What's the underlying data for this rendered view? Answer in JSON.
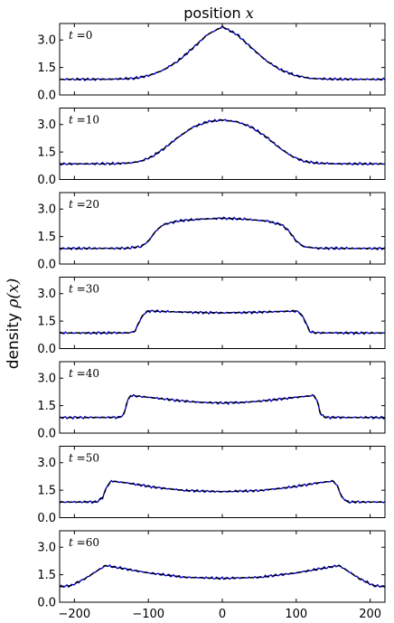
{
  "chart_data": {
    "type": "line",
    "title": "",
    "xlabel": {
      "prefix": "position ",
      "symbol": "x"
    },
    "ylabel": {
      "prefix": "density ",
      "symbol": "ρ(x)"
    },
    "xlim": [
      -220,
      220
    ],
    "ylim": [
      0,
      3.9
    ],
    "xticks": [
      -200,
      -100,
      0,
      100,
      200
    ],
    "xtick_labels": [
      "−200",
      "−100",
      "0",
      "100",
      "200"
    ],
    "yticks": [
      0.0,
      1.5,
      3.0
    ],
    "ytick_labels": [
      "0.0",
      "1.5",
      "3.0"
    ],
    "grid": false,
    "series_styles": {
      "simulation": "#0000cc",
      "theory": "#000000 dashed"
    },
    "panels": [
      {
        "label_var": "t",
        "label_eq": " =0",
        "points": [
          [
            -220,
            0.85
          ],
          [
            -150,
            0.86
          ],
          [
            -120,
            0.9
          ],
          [
            -100,
            1.05
          ],
          [
            -80,
            1.35
          ],
          [
            -60,
            1.85
          ],
          [
            -40,
            2.55
          ],
          [
            -20,
            3.3
          ],
          [
            0,
            3.72
          ],
          [
            20,
            3.3
          ],
          [
            40,
            2.55
          ],
          [
            60,
            1.85
          ],
          [
            80,
            1.35
          ],
          [
            100,
            1.05
          ],
          [
            120,
            0.9
          ],
          [
            150,
            0.86
          ],
          [
            220,
            0.85
          ]
        ]
      },
      {
        "label_var": "t",
        "label_eq": " =10",
        "points": [
          [
            -220,
            0.85
          ],
          [
            -150,
            0.86
          ],
          [
            -125,
            0.9
          ],
          [
            -110,
            1.0
          ],
          [
            -95,
            1.25
          ],
          [
            -80,
            1.65
          ],
          [
            -60,
            2.3
          ],
          [
            -40,
            2.85
          ],
          [
            -20,
            3.15
          ],
          [
            0,
            3.25
          ],
          [
            20,
            3.15
          ],
          [
            40,
            2.85
          ],
          [
            60,
            2.3
          ],
          [
            80,
            1.65
          ],
          [
            95,
            1.25
          ],
          [
            110,
            1.0
          ],
          [
            125,
            0.9
          ],
          [
            150,
            0.86
          ],
          [
            220,
            0.85
          ]
        ]
      },
      {
        "label_var": "t",
        "label_eq": " =20",
        "points": [
          [
            -220,
            0.85
          ],
          [
            -130,
            0.86
          ],
          [
            -110,
            0.95
          ],
          [
            -100,
            1.25
          ],
          [
            -90,
            1.8
          ],
          [
            -80,
            2.15
          ],
          [
            -60,
            2.35
          ],
          [
            -30,
            2.45
          ],
          [
            0,
            2.5
          ],
          [
            30,
            2.45
          ],
          [
            60,
            2.35
          ],
          [
            80,
            2.15
          ],
          [
            90,
            1.8
          ],
          [
            100,
            1.25
          ],
          [
            110,
            0.95
          ],
          [
            130,
            0.86
          ],
          [
            220,
            0.85
          ]
        ]
      },
      {
        "label_var": "t",
        "label_eq": " =30",
        "points": [
          [
            -220,
            0.85
          ],
          [
            -125,
            0.86
          ],
          [
            -118,
            0.95
          ],
          [
            -112,
            1.5
          ],
          [
            -106,
            1.9
          ],
          [
            -100,
            2.05
          ],
          [
            -60,
            2.0
          ],
          [
            -30,
            1.97
          ],
          [
            0,
            1.95
          ],
          [
            30,
            1.97
          ],
          [
            60,
            2.0
          ],
          [
            100,
            2.05
          ],
          [
            106,
            1.9
          ],
          [
            112,
            1.5
          ],
          [
            118,
            0.95
          ],
          [
            125,
            0.86
          ],
          [
            220,
            0.85
          ]
        ]
      },
      {
        "label_var": "t",
        "label_eq": " =40",
        "points": [
          [
            -220,
            0.85
          ],
          [
            -140,
            0.86
          ],
          [
            -133,
            1.0
          ],
          [
            -129,
            1.7
          ],
          [
            -124,
            2.05
          ],
          [
            -110,
            2.0
          ],
          [
            -60,
            1.78
          ],
          [
            -30,
            1.68
          ],
          [
            0,
            1.65
          ],
          [
            30,
            1.68
          ],
          [
            60,
            1.78
          ],
          [
            110,
            2.0
          ],
          [
            124,
            2.05
          ],
          [
            129,
            1.7
          ],
          [
            133,
            1.0
          ],
          [
            140,
            0.86
          ],
          [
            220,
            0.85
          ]
        ]
      },
      {
        "label_var": "t",
        "label_eq": " =50",
        "points": [
          [
            -220,
            0.85
          ],
          [
            -170,
            0.86
          ],
          [
            -162,
            1.1
          ],
          [
            -156,
            1.7
          ],
          [
            -150,
            2.0
          ],
          [
            -130,
            1.9
          ],
          [
            -90,
            1.65
          ],
          [
            -50,
            1.48
          ],
          [
            0,
            1.42
          ],
          [
            50,
            1.48
          ],
          [
            90,
            1.65
          ],
          [
            130,
            1.9
          ],
          [
            150,
            2.0
          ],
          [
            156,
            1.7
          ],
          [
            162,
            1.1
          ],
          [
            170,
            0.86
          ],
          [
            220,
            0.85
          ]
        ]
      },
      {
        "label_var": "t",
        "label_eq": " =60",
        "points": [
          [
            -220,
            0.85
          ],
          [
            -205,
            0.9
          ],
          [
            -185,
            1.3
          ],
          [
            -168,
            1.75
          ],
          [
            -158,
            2.0
          ],
          [
            -140,
            1.88
          ],
          [
            -100,
            1.6
          ],
          [
            -50,
            1.36
          ],
          [
            0,
            1.3
          ],
          [
            50,
            1.36
          ],
          [
            100,
            1.6
          ],
          [
            140,
            1.88
          ],
          [
            158,
            2.0
          ],
          [
            168,
            1.75
          ],
          [
            185,
            1.3
          ],
          [
            205,
            0.9
          ],
          [
            220,
            0.85
          ]
        ]
      }
    ]
  }
}
